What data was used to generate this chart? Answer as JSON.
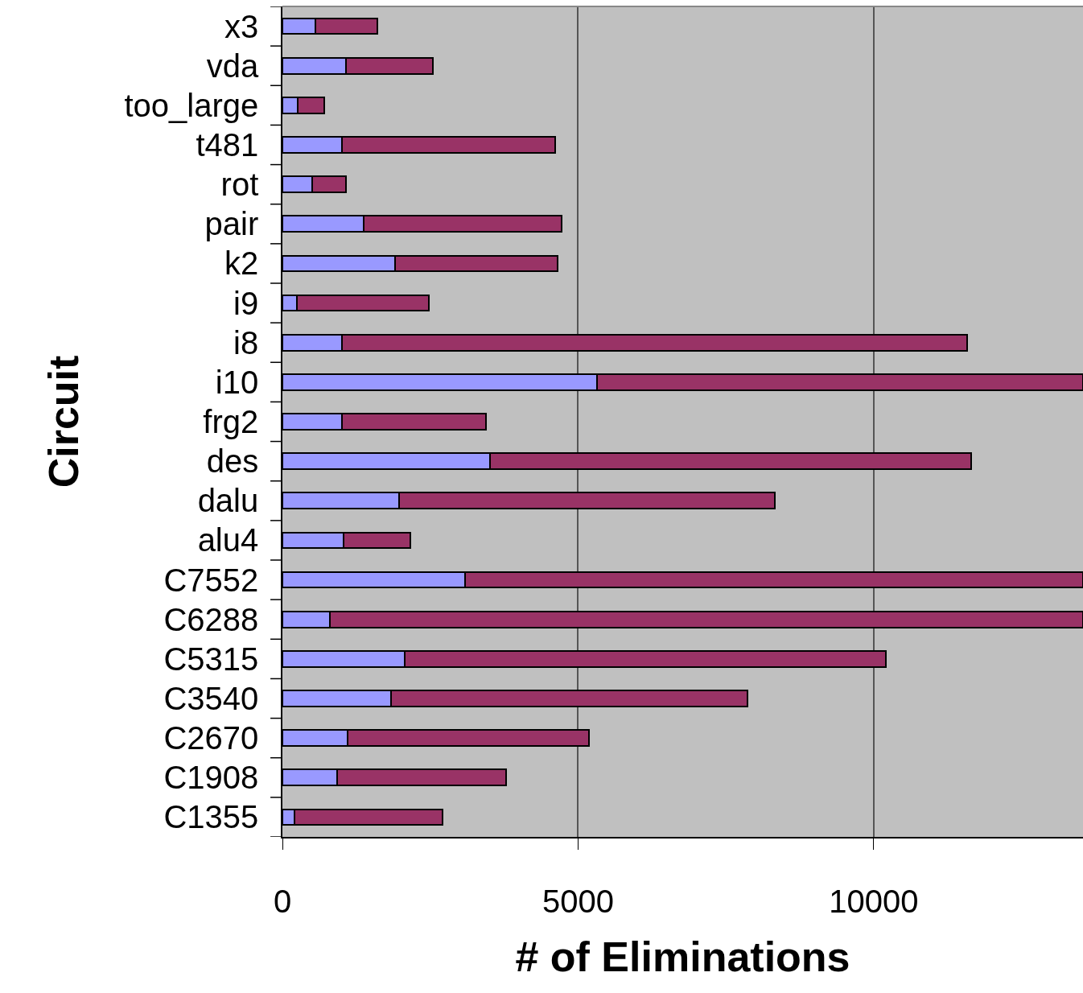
{
  "chart_data": {
    "type": "bar",
    "orientation": "horizontal",
    "stacked": true,
    "xlabel": "# of Eliminations",
    "ylabel": "Circuit",
    "categories": [
      "x3",
      "vda",
      "too_large",
      "t481",
      "rot",
      "pair",
      "k2",
      "i9",
      "i8",
      "i10",
      "frg2",
      "des",
      "dalu",
      "alu4",
      "C7552",
      "C6288",
      "C5315",
      "C3540",
      "C2670",
      "C1908",
      "C1355"
    ],
    "series": [
      {
        "color": "#9999ff",
        "values": [
          560,
          1080,
          260,
          1010,
          500,
          1370,
          1910,
          250,
          1010,
          5320,
          1010,
          3510,
          1970,
          1030,
          3090,
          800,
          2070,
          1840,
          1100,
          930,
          200
        ]
      },
      {
        "color": "#993366",
        "values": [
          1050,
          1460,
          450,
          3600,
          570,
          3350,
          2740,
          2230,
          10570,
          8220,
          2430,
          8140,
          6360,
          1140,
          10450,
          12740,
          8130,
          6030,
          4080,
          2850,
          2510
        ]
      }
    ],
    "xlim": [
      0,
      13540
    ],
    "xticks": [
      0,
      5000,
      10000
    ],
    "grid": "x"
  }
}
